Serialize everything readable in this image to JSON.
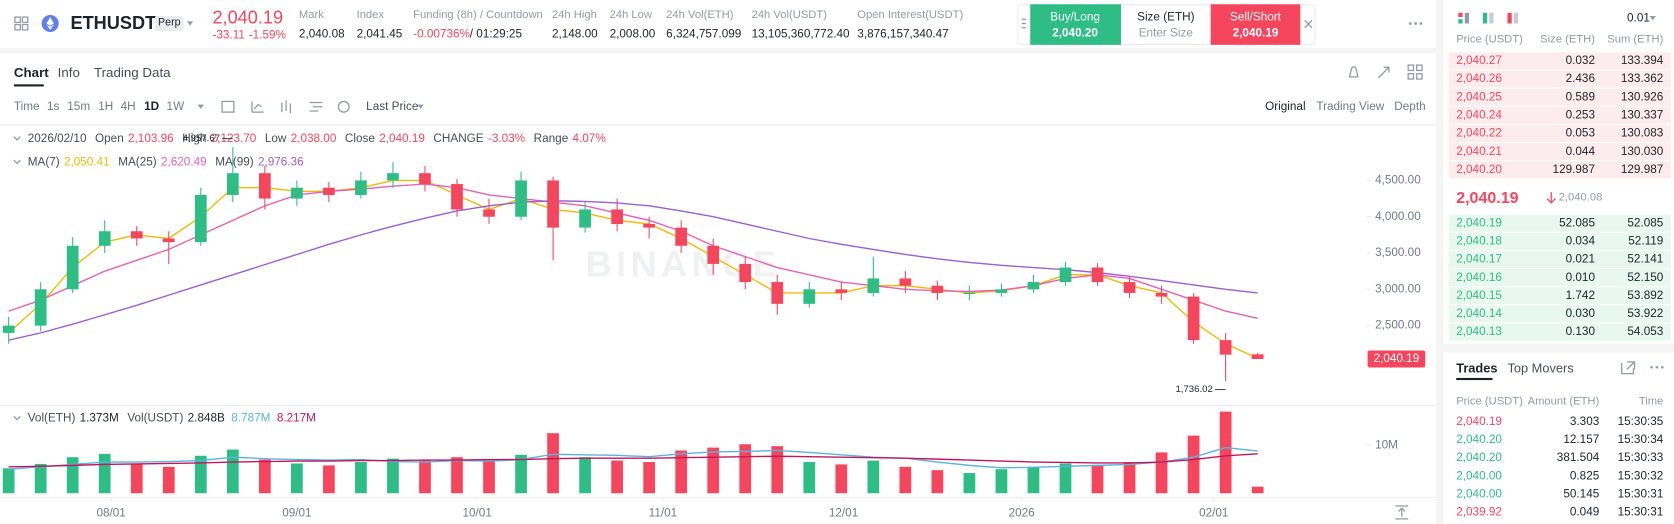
{
  "header": {
    "symbol": "ETHUSDT",
    "badge": "Perp",
    "last_price": "2,040.19",
    "change": "-33.11",
    "change_pct": "-1.59%",
    "stats": [
      {
        "label": "Mark",
        "value": "2,040.08"
      },
      {
        "label": "Index",
        "value": "2,041.45"
      },
      {
        "label": "Funding (8h) / Countdown",
        "value": "-0.00736%",
        "extra": "/ 01:29:25"
      },
      {
        "label": "24h High",
        "value": "2,148.00"
      },
      {
        "label": "24h Low",
        "value": "2,008.00"
      },
      {
        "label": "24h Vol(ETH)",
        "value": "6,324,757.099"
      },
      {
        "label": "24h Vol(USDT)",
        "value": "13,105,360,772.40"
      },
      {
        "label": "Open Interest(USDT)",
        "value": "3,876,157,340.47"
      }
    ]
  },
  "trade_box": {
    "buy_label": "Buy/Long",
    "buy_price": "2,040.20",
    "size_label": "Size (ETH)",
    "size_placeholder": "Enter Size",
    "sell_label": "Sell/Short",
    "sell_price": "2,040.19"
  },
  "tabs": [
    "Chart",
    "Info",
    "Trading Data"
  ],
  "intervals": [
    "Time",
    "1s",
    "15m",
    "1H",
    "4H",
    "1D",
    "1W"
  ],
  "price_type": "Last Price",
  "views": [
    "Original",
    "Trading View",
    "Depth"
  ],
  "ohlc_info": {
    "date": "2026/02/10",
    "items": [
      {
        "label": "Open",
        "value": "2,103.96"
      },
      {
        "label": "High",
        "value": "2,123.70"
      },
      {
        "label": "Low",
        "value": "2,038.00"
      },
      {
        "label": "Close",
        "value": "2,040.19"
      },
      {
        "label": "CHANGE",
        "value": "-3.03%"
      },
      {
        "label": "Range",
        "value": "4.07%"
      }
    ]
  },
  "chart_data": {
    "type": "candlestick",
    "watermark": "BINANCE",
    "up_color": "#2ebd85",
    "down_color": "#f6465d",
    "xlim": [
      -0.27,
      42.4
    ],
    "xticks": [
      {
        "value": 3.2,
        "label": "08/01"
      },
      {
        "value": 9,
        "label": "09/01"
      },
      {
        "value": 14.63,
        "label": "10/01"
      },
      {
        "value": 20.43,
        "label": "11/01"
      },
      {
        "value": 26.07,
        "label": "12/01"
      },
      {
        "value": 31.63,
        "label": "2026"
      },
      {
        "value": 37.63,
        "label": "02/01"
      }
    ],
    "ylim": [
      1426.5,
      5220.6
    ],
    "yticks": [
      {
        "value": 2500,
        "label": "2,500.00"
      },
      {
        "value": 3000,
        "label": "3,000.00"
      },
      {
        "value": 3500,
        "label": "3,500.00"
      },
      {
        "value": 4000,
        "label": "4,000.00"
      },
      {
        "value": 4500,
        "label": "4,500.00"
      }
    ],
    "ohlc": {
      "open": [
        2400,
        2500,
        3000,
        3600,
        3800,
        3700,
        3650,
        4300,
        4600,
        4250,
        4400,
        4300,
        4500,
        4600,
        4450,
        4100,
        4000,
        4500,
        3850,
        4100,
        3900,
        3850,
        3600,
        3350,
        3100,
        2800,
        3000,
        2950,
        3150,
        3050,
        2950,
        2950,
        3000,
        3100,
        3300,
        3100,
        2950,
        2900,
        2300,
        2103.96
      ],
      "high": [
        2620,
        3100,
        3720,
        3950,
        3870,
        3800,
        4400,
        4957.67,
        4700,
        4500,
        4480,
        4620,
        4750,
        4700,
        4520,
        4250,
        4620,
        4550,
        4200,
        4250,
        4000,
        3950,
        3700,
        3450,
        3200,
        3100,
        3100,
        3450,
        3250,
        3120,
        3050,
        3080,
        3200,
        3380,
        3360,
        3180,
        3050,
        2950,
        2400,
        2123.7
      ],
      "low": [
        2250,
        2420,
        2950,
        3500,
        3600,
        3350,
        3600,
        4200,
        4100,
        4150,
        4200,
        4250,
        4400,
        4350,
        4000,
        3900,
        3950,
        3400,
        3780,
        3800,
        3700,
        3500,
        3200,
        3000,
        2650,
        2750,
        2850,
        2900,
        2950,
        2850,
        2850,
        2900,
        2950,
        3050,
        3050,
        2880,
        2800,
        2250,
        1736.02,
        2038
      ],
      "close": [
        2500,
        3000,
        3600,
        3800,
        3700,
        3650,
        4300,
        4600,
        4250,
        4400,
        4300,
        4500,
        4600,
        4450,
        4100,
        4000,
        4500,
        3850,
        4100,
        3900,
        3850,
        3600,
        3350,
        3100,
        2800,
        3000,
        2950,
        3150,
        3050,
        2950,
        2950,
        3000,
        3100,
        3300,
        3100,
        2950,
        2900,
        2300,
        2100,
        2040.19
      ]
    },
    "ma": [
      {
        "name": "MA(7)",
        "value_label": "2,050.41",
        "color": "#f0b90b",
        "values": [
          2400,
          2800,
          3300,
          3650,
          3750,
          3700,
          4000,
          4400,
          4400,
          4350,
          4350,
          4400,
          4500,
          4500,
          4300,
          4100,
          4250,
          4100,
          4050,
          3950,
          3900,
          3700,
          3450,
          3200,
          2950,
          2950,
          2950,
          3050,
          3050,
          3000,
          2950,
          2980,
          3050,
          3200,
          3200,
          3050,
          2950,
          2550,
          2250,
          2050
        ]
      },
      {
        "name": "MA(25)",
        "value_label": "2,620.49",
        "color": "#e463b4",
        "values": [
          2700,
          2850,
          3050,
          3250,
          3400,
          3550,
          3750,
          3950,
          4150,
          4300,
          4350,
          4380,
          4420,
          4450,
          4400,
          4300,
          4250,
          4200,
          4150,
          4050,
          3950,
          3800,
          3600,
          3450,
          3300,
          3200,
          3100,
          3050,
          3000,
          2980,
          2970,
          2990,
          3050,
          3150,
          3200,
          3150,
          3000,
          2850,
          2700,
          2600
        ]
      },
      {
        "name": "MA(99)",
        "value_label": "2,976.36",
        "color": "#9c5fd1",
        "values": [
          2300,
          2400,
          2520,
          2650,
          2780,
          2920,
          3060,
          3200,
          3340,
          3480,
          3620,
          3750,
          3870,
          3980,
          4080,
          4150,
          4200,
          4220,
          4210,
          4190,
          4150,
          4080,
          4000,
          3900,
          3800,
          3700,
          3620,
          3550,
          3480,
          3420,
          3370,
          3330,
          3300,
          3270,
          3230,
          3180,
          3120,
          3060,
          3000,
          2950
        ]
      }
    ],
    "annotations": [
      {
        "value": 4957.67,
        "label": "4,957.67"
      },
      {
        "value": 1736.02,
        "label": "1,736.02"
      }
    ],
    "last_price": {
      "value": 2040.19,
      "label": "2,040.19"
    },
    "volume": {
      "name": "Vol(ETH)",
      "value_label": "1.373M",
      "usdt_name": "Vol(USDT)",
      "usdt_label": "2.848B",
      "ylim": [
        0,
        17.56
      ],
      "yticks": [
        {
          "value": 10,
          "label": "10M"
        }
      ],
      "values": [
        5.2,
        6.1,
        7.5,
        8.2,
        6.0,
        5.5,
        7.8,
        9.1,
        7.0,
        6.2,
        5.8,
        6.5,
        7.2,
        6.8,
        7.5,
        6.9,
        8.0,
        12.5,
        7.5,
        6.8,
        6.5,
        8.9,
        9.5,
        10.2,
        9.8,
        6.5,
        6.0,
        6.8,
        5.5,
        4.8,
        4.2,
        5.0,
        5.5,
        6.2,
        5.8,
        6.5,
        8.5,
        12.0,
        17.0,
        1.373
      ],
      "ma": [
        {
          "value_label": "8.787M",
          "color": "#5ab4e0",
          "values": [
            5.0,
            5.5,
            6.0,
            6.5,
            6.5,
            6.6,
            6.8,
            7.5,
            7.2,
            7.0,
            6.9,
            7.0,
            6.6,
            6.5,
            6.8,
            6.7,
            7.0,
            8.1,
            8.0,
            7.9,
            7.6,
            8.2,
            8.6,
            8.7,
            8.9,
            8.5,
            8.0,
            7.5,
            7.3,
            6.5,
            5.8,
            5.3,
            5.4,
            5.6,
            5.8,
            6.0,
            6.5,
            7.5,
            9.5,
            8.787
          ]
        },
        {
          "value_label": "8.217M",
          "color": "#c2185b",
          "values": [
            5.5,
            5.6,
            5.8,
            6.0,
            6.1,
            6.2,
            6.3,
            6.5,
            6.6,
            6.7,
            6.7,
            6.8,
            6.8,
            6.9,
            6.9,
            7.0,
            7.0,
            7.2,
            7.3,
            7.3,
            7.3,
            7.4,
            7.5,
            7.6,
            7.7,
            7.6,
            7.5,
            7.4,
            7.3,
            7.1,
            6.9,
            6.7,
            6.5,
            6.4,
            6.3,
            6.3,
            6.5,
            7.0,
            7.8,
            8.217
          ]
        }
      ]
    }
  },
  "order_book": {
    "precision": "0.01",
    "columns": [
      "Price (USDT)",
      "Size (ETH)",
      "Sum (ETH)"
    ],
    "asks": [
      [
        "2,040.27",
        "0.032",
        "133.394"
      ],
      [
        "2,040.26",
        "2.436",
        "133.362"
      ],
      [
        "2,040.25",
        "0.589",
        "130.926"
      ],
      [
        "2,040.24",
        "0.253",
        "130.337"
      ],
      [
        "2,040.22",
        "0.053",
        "130.083"
      ],
      [
        "2,040.21",
        "0.044",
        "130.030"
      ],
      [
        "2,040.20",
        "129.987",
        "129.987"
      ]
    ],
    "mid_price": "2,040.19",
    "mark_price": "2,040.08",
    "bids": [
      [
        "2,040.19",
        "52.085",
        "52.085"
      ],
      [
        "2,040.18",
        "0.034",
        "52.119"
      ],
      [
        "2,040.17",
        "0.021",
        "52.141"
      ],
      [
        "2,040.16",
        "0.010",
        "52.150"
      ],
      [
        "2,040.15",
        "1.742",
        "53.892"
      ],
      [
        "2,040.14",
        "0.030",
        "53.922"
      ],
      [
        "2,040.13",
        "0.130",
        "54.053"
      ]
    ]
  },
  "trades": {
    "tabs": [
      "Trades",
      "Top Movers"
    ],
    "columns": [
      "Price (USDT)",
      "Amount (ETH)",
      "Time"
    ],
    "rows": [
      [
        "2,040.19",
        "3.303",
        "15:30:35"
      ],
      [
        "2,040.20",
        "12.157",
        "15:30:34"
      ],
      [
        "2,040.20",
        "381.504",
        "15:30:33"
      ],
      [
        "2,040.00",
        "0.825",
        "15:30:32"
      ],
      [
        "2,040.00",
        "50.145",
        "15:30:31"
      ],
      [
        "2,039.92",
        "0.049",
        "15:30:31"
      ]
    ],
    "row_colors": [
      "#f6465d",
      "#2ebd85",
      "#2ebd85",
      "#2ebd85",
      "#2ebd85",
      "#f6465d"
    ]
  }
}
